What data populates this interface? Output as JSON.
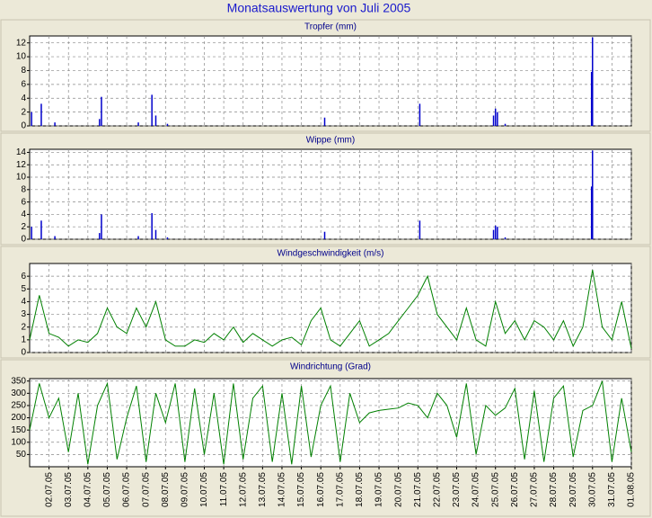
{
  "title": "Monatsauswertung von Juli 2005",
  "chart_data": [
    {
      "type": "bar",
      "title": "Tropfer (mm)",
      "color": "#0000cc",
      "x": [
        1.1,
        1.6,
        2.3,
        4.6,
        4.7,
        6.6,
        7.3,
        7.5,
        8.1,
        16.2,
        21.1,
        24.9,
        25.0,
        25.1,
        25.5,
        29.95,
        30.0
      ],
      "values": [
        2,
        3.2,
        0.5,
        1,
        4.2,
        0.5,
        4.5,
        1.5,
        0.3,
        1.2,
        3.2,
        1.5,
        2.5,
        2,
        0.3,
        7.8,
        12.8
      ],
      "xlim": [
        1,
        32
      ],
      "ylim": [
        0,
        13
      ],
      "yticks": [
        0,
        2,
        4,
        6,
        8,
        10,
        12
      ],
      "grid": true
    },
    {
      "type": "bar",
      "title": "Wippe (mm)",
      "color": "#0000cc",
      "x": [
        1.1,
        1.6,
        2.3,
        4.6,
        4.7,
        6.6,
        7.3,
        7.5,
        8.1,
        16.2,
        21.1,
        24.9,
        25.0,
        25.1,
        25.5,
        29.95,
        30.0
      ],
      "values": [
        2,
        3,
        0.5,
        1,
        4,
        0.5,
        4.2,
        1.5,
        0.3,
        1.2,
        3,
        1.5,
        2.2,
        2,
        0.3,
        8.5,
        14.3
      ],
      "xlim": [
        1,
        32
      ],
      "ylim": [
        0,
        14.5
      ],
      "yticks": [
        0,
        2,
        4,
        6,
        8,
        10,
        12,
        14
      ],
      "grid": true
    },
    {
      "type": "line",
      "title": "Windgeschwindigkeit (m/s)",
      "color": "#008000",
      "x": [
        1.0,
        1.5,
        2.0,
        2.5,
        3.0,
        3.5,
        4.0,
        4.5,
        5.0,
        5.5,
        6.0,
        6.5,
        7.0,
        7.5,
        8.0,
        8.5,
        9.0,
        9.5,
        10.0,
        10.5,
        11.0,
        11.5,
        12.0,
        12.5,
        13.0,
        13.5,
        14.0,
        14.5,
        15.0,
        15.5,
        16.0,
        16.5,
        17.0,
        17.5,
        18.0,
        18.5,
        19.0,
        19.5,
        20.0,
        20.5,
        21.0,
        21.5,
        22.0,
        22.5,
        23.0,
        23.5,
        24.0,
        24.5,
        25.0,
        25.5,
        26.0,
        26.5,
        27.0,
        27.5,
        28.0,
        28.5,
        29.0,
        29.5,
        30.0,
        30.5,
        31.0,
        31.5,
        32.0
      ],
      "values": [
        1,
        4.5,
        1.5,
        1.2,
        0.5,
        1.0,
        0.8,
        1.5,
        3.5,
        2,
        1.5,
        3.5,
        2,
        4,
        1,
        0.5,
        0.5,
        1,
        0.8,
        1.5,
        1,
        2,
        0.8,
        1.5,
        1,
        0.5,
        1,
        1.2,
        0.6,
        2.5,
        3.5,
        1,
        0.5,
        1.5,
        2.5,
        0.5,
        1,
        1.5,
        2.5,
        3.5,
        4.5,
        6,
        3,
        2,
        1,
        3.5,
        1,
        0.5,
        4,
        1.5,
        2.5,
        1,
        2.5,
        2,
        1,
        2.5,
        0.5,
        2,
        6.5,
        2,
        1,
        4,
        0.3
      ],
      "xlim": [
        1,
        32
      ],
      "ylim": [
        0,
        7
      ],
      "yticks": [
        0,
        1,
        2,
        3,
        4,
        5,
        6
      ],
      "grid": true
    },
    {
      "type": "line",
      "title": "Windrichtung (Grad)",
      "color": "#008000",
      "x": [
        1.0,
        1.5,
        2.0,
        2.5,
        3.0,
        3.5,
        4.0,
        4.5,
        5.0,
        5.5,
        6.0,
        6.5,
        7.0,
        7.5,
        8.0,
        8.5,
        9.0,
        9.5,
        10.0,
        10.5,
        11.0,
        11.5,
        12.0,
        12.5,
        13.0,
        13.5,
        14.0,
        14.5,
        15.0,
        15.5,
        16.0,
        16.5,
        17.0,
        17.5,
        18.0,
        18.5,
        19.0,
        19.5,
        20.0,
        20.5,
        21.0,
        21.5,
        22.0,
        22.5,
        23.0,
        23.5,
        24.0,
        24.5,
        25.0,
        25.5,
        26.0,
        26.5,
        27.0,
        27.5,
        28.0,
        28.5,
        29.0,
        29.5,
        30.0,
        30.5,
        31.0,
        31.5,
        32.0
      ],
      "values": [
        150,
        340,
        200,
        280,
        60,
        300,
        10,
        250,
        340,
        30,
        200,
        330,
        20,
        300,
        180,
        340,
        20,
        320,
        50,
        300,
        10,
        340,
        30,
        280,
        330,
        20,
        300,
        10,
        330,
        40,
        250,
        330,
        20,
        300,
        180,
        220,
        230,
        235,
        240,
        260,
        250,
        200,
        300,
        250,
        120,
        340,
        50,
        250,
        210,
        240,
        320,
        30,
        310,
        20,
        280,
        330,
        40,
        230,
        250,
        350,
        20,
        280,
        60
      ],
      "xlim": [
        1,
        32
      ],
      "ylim": [
        0,
        360
      ],
      "yticks": [
        50,
        100,
        150,
        200,
        250,
        300,
        350
      ],
      "grid": true,
      "xticks": [
        {
          "value": 2,
          "label": "02.07.05"
        },
        {
          "value": 3,
          "label": "03.07.05"
        },
        {
          "value": 4,
          "label": "04.07.05"
        },
        {
          "value": 5,
          "label": "05.07.05"
        },
        {
          "value": 6,
          "label": "06.07.05"
        },
        {
          "value": 7,
          "label": "07.07.05"
        },
        {
          "value": 8,
          "label": "08.07.05"
        },
        {
          "value": 9,
          "label": "09.07.05"
        },
        {
          "value": 10,
          "label": "10.07.05"
        },
        {
          "value": 11,
          "label": "11.07.05"
        },
        {
          "value": 12,
          "label": "12.07.05"
        },
        {
          "value": 13,
          "label": "13.07.05"
        },
        {
          "value": 14,
          "label": "14.07.05"
        },
        {
          "value": 15,
          "label": "15.07.05"
        },
        {
          "value": 16,
          "label": "16.07.05"
        },
        {
          "value": 17,
          "label": "17.07.05"
        },
        {
          "value": 18,
          "label": "18.07.05"
        },
        {
          "value": 19,
          "label": "19.07.05"
        },
        {
          "value": 20,
          "label": "20.07.05"
        },
        {
          "value": 21,
          "label": "21.07.05"
        },
        {
          "value": 22,
          "label": "22.07.05"
        },
        {
          "value": 23,
          "label": "23.07.05"
        },
        {
          "value": 24,
          "label": "24.07.05"
        },
        {
          "value": 25,
          "label": "25.07.05"
        },
        {
          "value": 26,
          "label": "26.07.05"
        },
        {
          "value": 27,
          "label": "27.07.05"
        },
        {
          "value": 28,
          "label": "28.07.05"
        },
        {
          "value": 29,
          "label": "29.07.05"
        },
        {
          "value": 30,
          "label": "30.07.05"
        },
        {
          "value": 31,
          "label": "31.07.05"
        },
        {
          "value": 32,
          "label": "01.08.05"
        }
      ]
    }
  ]
}
